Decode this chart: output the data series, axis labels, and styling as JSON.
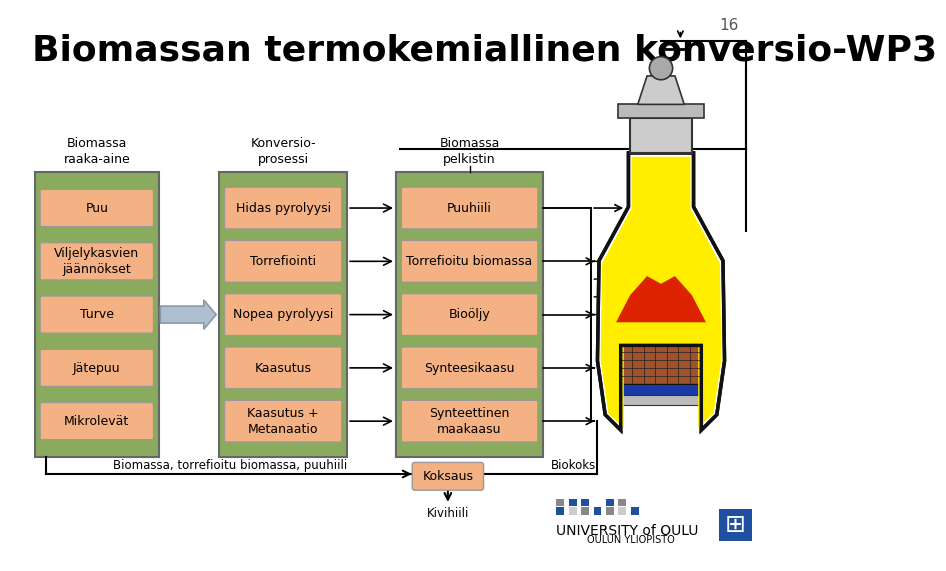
{
  "title": "Biomassan termokemiallinen konversio-WP3",
  "slide_number": "16",
  "title_color": "#000000",
  "title_fontsize": 26,
  "outer_box_color": "#8aaa5e",
  "inner_box_color": "#f4b183",
  "col1_header": "Biomassa\nraaka-aine",
  "col2_header": "Konversio-\nprosessi",
  "col3_header": "Biomassa\npelkistin",
  "col1_items": [
    "Puu",
    "Viljelykasvien\njäännökset",
    "Turve",
    "Jätepuu",
    "Mikrolevät"
  ],
  "col2_items": [
    "Hidas pyrolyysi",
    "Torrefiointi",
    "Nopea pyrolyysi",
    "Kaasutus",
    "Kaasutus +\nMetanaatio"
  ],
  "col3_items": [
    "Puuhiili",
    "Torrefioitu biomassa",
    "Bioöljy",
    "Synteesikaasu",
    "Synteettinen\nmaakaasu"
  ],
  "bottom_label": "Biomassa, torrefioitu biomassa, puuhiili",
  "koksaus_label": "Koksaus",
  "kivihiili_label": "Kivihiili",
  "biokoksi_label": "Biokoksi",
  "logo_text1": "UNIVERSITY of OULU",
  "logo_text2": "OULUN YLIOPISTO",
  "logo_blue": "#1e4fa0",
  "logo_grey": "#aaaaaa"
}
